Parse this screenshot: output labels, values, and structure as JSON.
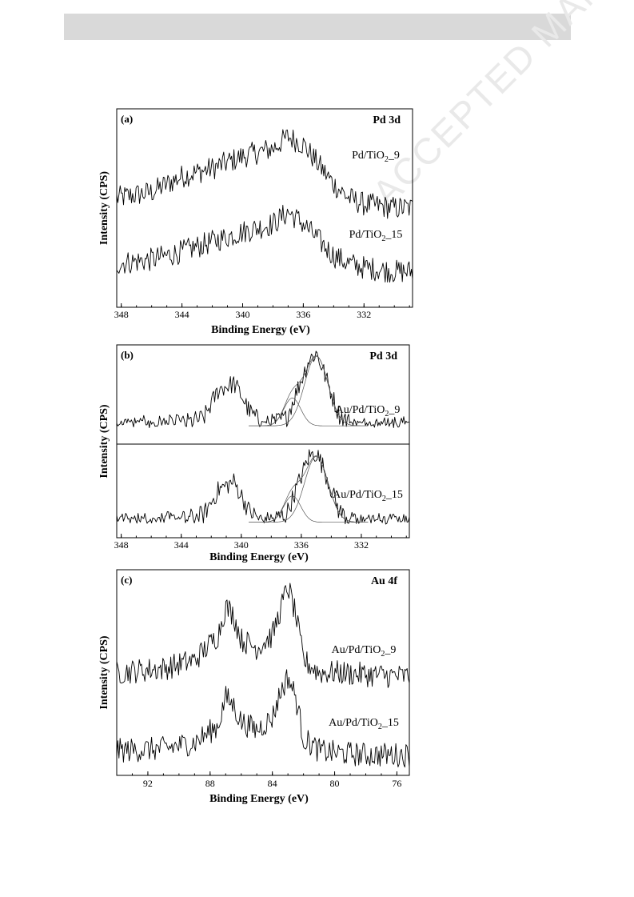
{
  "watermark": "ACCEPTED MANUSCRIPT",
  "chart_data": [
    {
      "panel": "(a)",
      "type": "line",
      "region": "Pd 3d",
      "xlabel": "Binding Energy (eV)",
      "ylabel": "Intensity (CPS)",
      "xlim": [
        348.3,
        328.8
      ],
      "x_ticks": [
        348,
        344,
        340,
        336,
        332
      ],
      "series": [
        {
          "name": "Pd/TiO2_9",
          "label_main": "Pd/TiO",
          "label_sub": "2",
          "label_tail": "_9",
          "x": [
            348.3,
            346,
            344,
            342,
            340,
            338,
            337,
            336,
            335,
            334,
            333,
            332,
            330,
            328.8
          ],
          "y": [
            0.55,
            0.58,
            0.66,
            0.7,
            0.76,
            0.8,
            0.86,
            0.82,
            0.72,
            0.62,
            0.55,
            0.52,
            0.5,
            0.5
          ]
        },
        {
          "name": "Pd/TiO2_15",
          "label_main": "Pd/TiO",
          "label_sub": "2",
          "label_tail": "_15",
          "x": [
            348.3,
            346,
            344,
            342,
            340,
            338,
            337,
            336,
            335,
            334,
            333,
            332,
            330,
            328.8
          ],
          "y": [
            0.22,
            0.24,
            0.28,
            0.33,
            0.38,
            0.42,
            0.48,
            0.42,
            0.34,
            0.26,
            0.22,
            0.2,
            0.18,
            0.18
          ]
        }
      ]
    },
    {
      "panel": "(b)",
      "type": "line",
      "region": "Pd 3d",
      "xlabel": "Binding Energy (eV)",
      "ylabel": "Intensity (CPS)",
      "xlim": [
        348.3,
        328.8
      ],
      "x_ticks": [
        348,
        344,
        340,
        336,
        332
      ],
      "series": [
        {
          "name": "Au/Pd/TiO2_9",
          "label_main": "Au/Pd/TiO",
          "label_sub": "2",
          "label_tail": "_9",
          "x": [
            348.3,
            344,
            342.5,
            341.5,
            340.5,
            340,
            339.5,
            338.5,
            337,
            336,
            335.5,
            335,
            334.5,
            333.5,
            332.5,
            330,
            328.8
          ],
          "y": [
            0.58,
            0.59,
            0.62,
            0.77,
            0.8,
            0.74,
            0.66,
            0.58,
            0.62,
            0.82,
            0.92,
            0.96,
            0.86,
            0.64,
            0.58,
            0.58,
            0.58
          ]
        },
        {
          "name": "Au/Pd/TiO2_15",
          "label_main": "Au/Pd/TiO",
          "label_sub": "2",
          "label_tail": "_15",
          "x": [
            348.3,
            344,
            342.5,
            341.5,
            340.5,
            340,
            339.5,
            338.5,
            337,
            336,
            335.5,
            335,
            334.5,
            333.5,
            332.5,
            330,
            328.8
          ],
          "y": [
            0.08,
            0.09,
            0.12,
            0.25,
            0.29,
            0.22,
            0.14,
            0.08,
            0.12,
            0.32,
            0.42,
            0.44,
            0.36,
            0.14,
            0.08,
            0.08,
            0.08
          ]
        }
      ]
    },
    {
      "panel": "(c)",
      "type": "line",
      "region": "Au 4f",
      "xlabel": "Binding Energy (eV)",
      "ylabel": "Intensity (CPS)",
      "xlim": [
        94.0,
        75.2
      ],
      "x_ticks": [
        92,
        88,
        84,
        80,
        76
      ],
      "series": [
        {
          "name": "Au/Pd/TiO2_9",
          "label_main": "Au/Pd/TiO",
          "label_sub": "2",
          "label_tail": "_9",
          "x": [
            94,
            91,
            89,
            87.5,
            87,
            86.5,
            86,
            85,
            84,
            83.5,
            83,
            82.5,
            82,
            81,
            80,
            78,
            75.2
          ],
          "y": [
            0.5,
            0.52,
            0.56,
            0.68,
            0.82,
            0.78,
            0.66,
            0.62,
            0.68,
            0.8,
            0.92,
            0.78,
            0.56,
            0.5,
            0.5,
            0.49,
            0.48
          ]
        },
        {
          "name": "Au/Pd/TiO2_15",
          "label_main": "Au/Pd/TiO",
          "label_sub": "2",
          "label_tail": "_15",
          "x": [
            94,
            91,
            89,
            87.5,
            87,
            86.5,
            86,
            85,
            84,
            83.5,
            83,
            82.5,
            82,
            81,
            80,
            78,
            75.2
          ],
          "y": [
            0.12,
            0.13,
            0.16,
            0.24,
            0.38,
            0.34,
            0.26,
            0.22,
            0.28,
            0.4,
            0.48,
            0.38,
            0.18,
            0.12,
            0.11,
            0.1,
            0.1
          ]
        }
      ]
    }
  ]
}
